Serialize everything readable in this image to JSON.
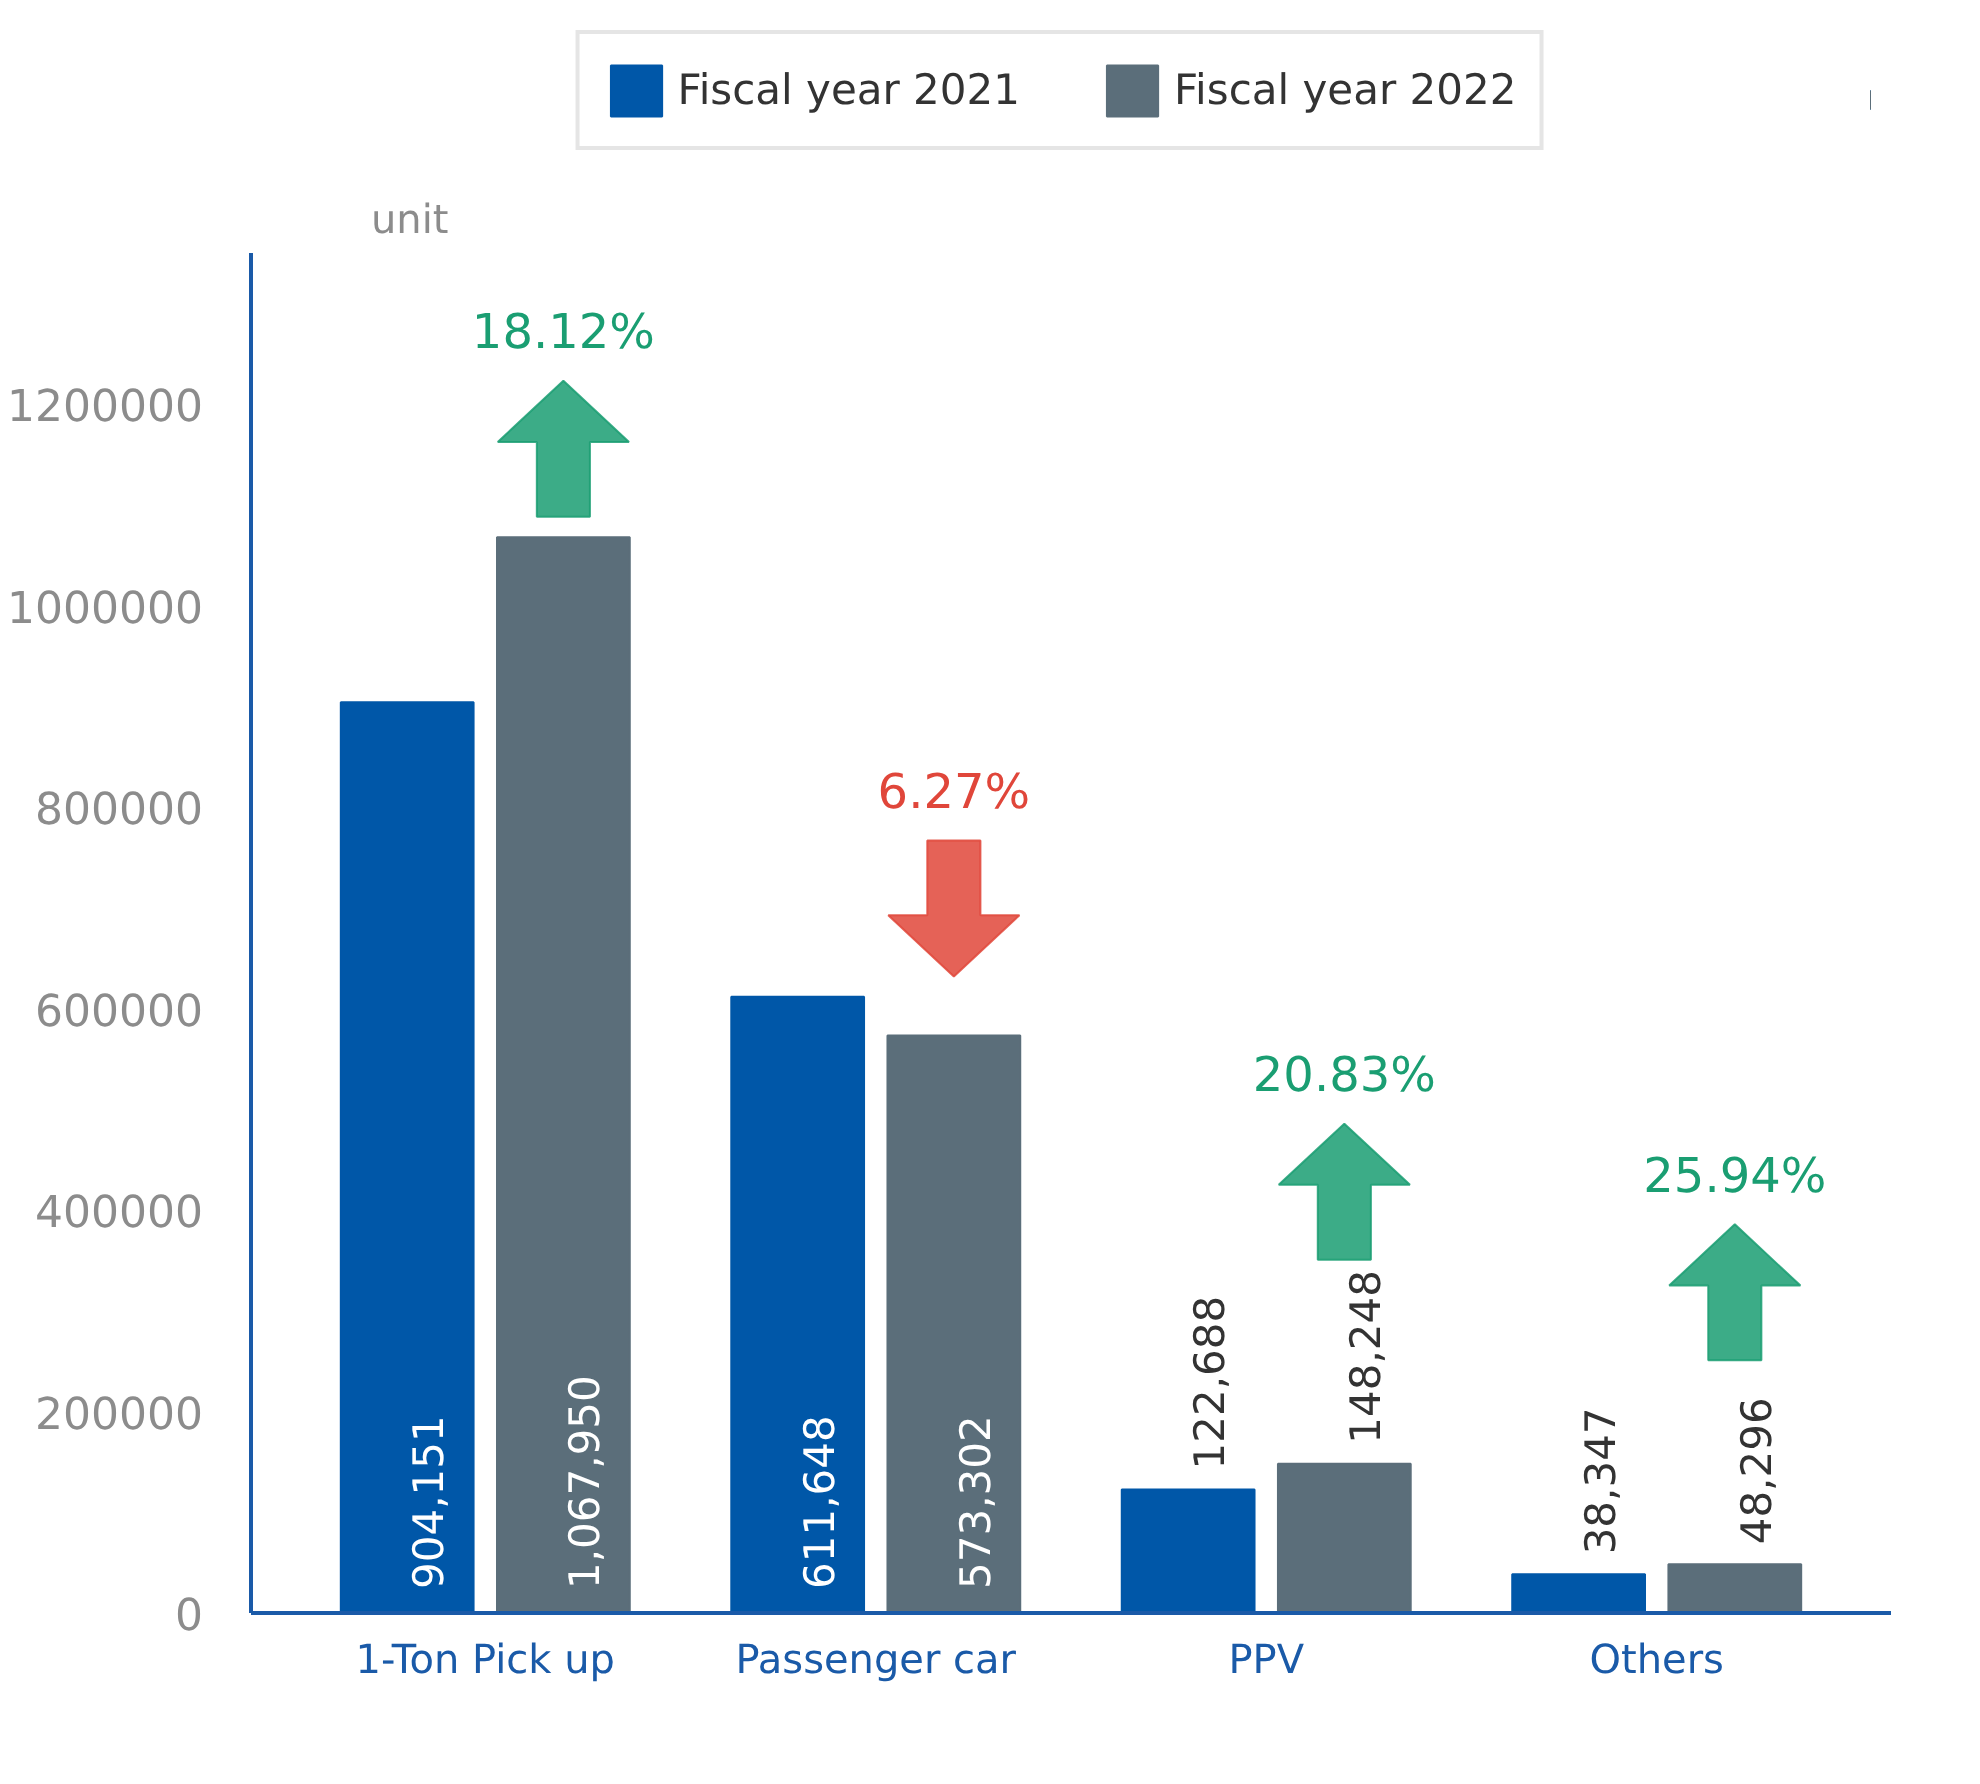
{
  "chart_data": {
    "type": "bar",
    "ylabel": "unit",
    "categories": [
      "1-Ton Pick up",
      "Passenger car",
      "PPV",
      "Others"
    ],
    "series": [
      {
        "name": "Fiscal year 2021",
        "color": "#0057a8",
        "values": [
          904151,
          611648,
          122688,
          38347
        ]
      },
      {
        "name": "Fiscal year 2022",
        "color": "#5b6e7a",
        "values": [
          1067950,
          573302,
          148248,
          48296
        ]
      }
    ],
    "value_labels": [
      [
        "904,151",
        "611,648",
        "122,688",
        "38,347"
      ],
      [
        "1,067,950",
        "573,302",
        "148,248",
        "48,296"
      ]
    ],
    "ylim": [
      0,
      1350000
    ],
    "yticks": [
      0,
      200000,
      400000,
      600000,
      800000,
      1000000,
      1200000
    ],
    "annotations": [
      "18.12%",
      "6.27%",
      "20.83%",
      "25.94%"
    ],
    "grid": false,
    "legend": "top"
  }
}
